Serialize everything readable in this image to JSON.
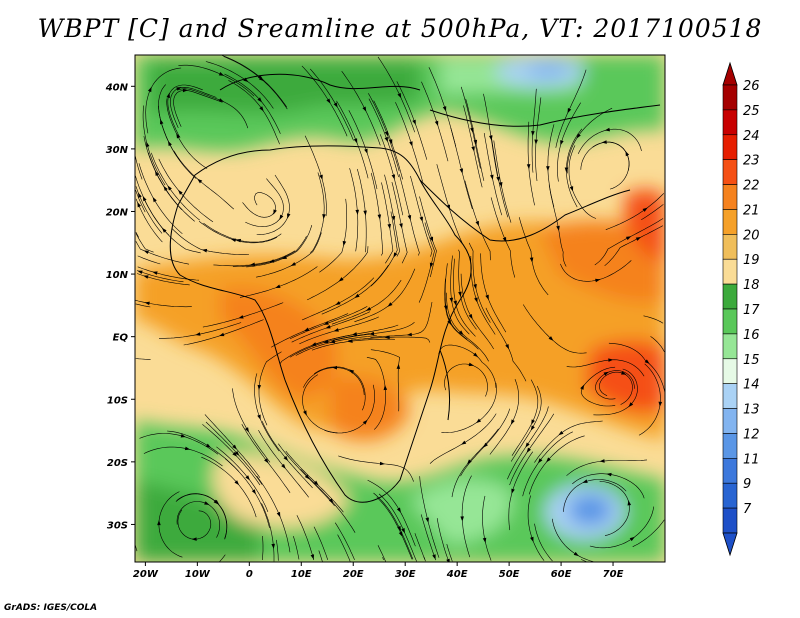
{
  "title": "WBPT [C] and Sreamline at 500hPa, VT: 2017100518",
  "credit": "GrADS: IGES/COLA",
  "map": {
    "lon_range": [
      -22,
      80
    ],
    "lat_range": [
      -36,
      45
    ],
    "lon_ticks": [
      {
        "value": -20,
        "label": "20W"
      },
      {
        "value": -10,
        "label": "10W"
      },
      {
        "value": 0,
        "label": "0"
      },
      {
        "value": 10,
        "label": "10E"
      },
      {
        "value": 20,
        "label": "20E"
      },
      {
        "value": 30,
        "label": "30E"
      },
      {
        "value": 40,
        "label": "40E"
      },
      {
        "value": 50,
        "label": "50E"
      },
      {
        "value": 60,
        "label": "60E"
      },
      {
        "value": 70,
        "label": "70E"
      }
    ],
    "lat_ticks": [
      {
        "value": 40,
        "label": "40N"
      },
      {
        "value": 30,
        "label": "30N"
      },
      {
        "value": 20,
        "label": "20N"
      },
      {
        "value": 10,
        "label": "10N"
      },
      {
        "value": 0,
        "label": "EQ"
      },
      {
        "value": -10,
        "label": "10S"
      },
      {
        "value": -20,
        "label": "20S"
      },
      {
        "value": -30,
        "label": "30S"
      }
    ]
  },
  "colorbar": {
    "levels": [
      {
        "label": "26",
        "color": "#a50000"
      },
      {
        "label": "25",
        "color": "#c80000"
      },
      {
        "label": "24",
        "color": "#e61e00"
      },
      {
        "label": "23",
        "color": "#f55014"
      },
      {
        "label": "22",
        "color": "#f5821e"
      },
      {
        "label": "21",
        "color": "#f5a028"
      },
      {
        "label": "20",
        "color": "#f0be5a"
      },
      {
        "label": "19",
        "color": "#fadc96"
      },
      {
        "label": "18",
        "color": "#3caa3c"
      },
      {
        "label": "17",
        "color": "#5ac85a"
      },
      {
        "label": "16",
        "color": "#96e696"
      },
      {
        "label": "15",
        "color": "#e6fae6"
      },
      {
        "label": "14",
        "color": "#aad2f5"
      },
      {
        "label": "13",
        "color": "#82b4f0"
      },
      {
        "label": "12",
        "color": "#5a96e6"
      },
      {
        "label": "11",
        "color": "#3c78dc"
      },
      {
        "label": "9",
        "color": "#2864d2"
      },
      {
        "label": "7",
        "color": "#1e50c8"
      }
    ]
  }
}
